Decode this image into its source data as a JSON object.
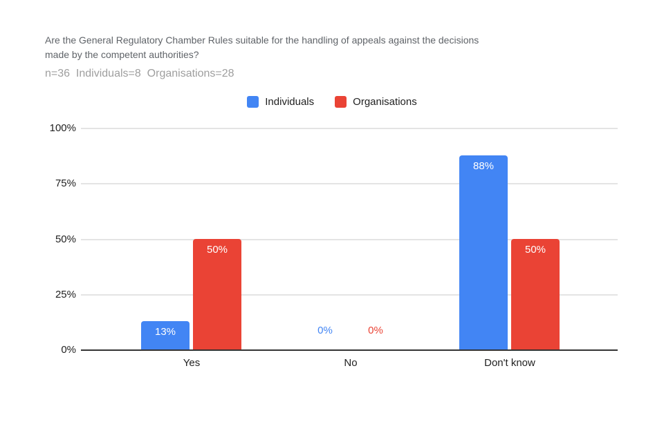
{
  "title": {
    "lines": [
      "Are the General Regulatory Chamber Rules suitable for the handling of appeals against the decisions",
      "made by the competent authorities?"
    ]
  },
  "subtitle": "n=36  Individuals=8  Organisations=28",
  "legend": {
    "items": [
      {
        "label": "Individuals",
        "color": "#4285F4"
      },
      {
        "label": "Organisations",
        "color": "#EA4335"
      }
    ]
  },
  "colors": {
    "individuals": "#4285F4",
    "organisations": "#EA4335",
    "gridline": "#e4e4e4",
    "axis": "#333333",
    "title_text": "#5f6368",
    "subtitle_text": "#9e9e9e"
  },
  "chart_data": {
    "type": "bar",
    "title": "Are the General Regulatory Chamber Rules suitable for the handling of appeals against the decisions made by the competent authorities?",
    "subtitle": "n=36  Individuals=8  Organisations=28",
    "categories": [
      "Yes",
      "No",
      "Don't know"
    ],
    "series": [
      {
        "name": "Individuals",
        "color": "#4285F4",
        "values": [
          13,
          0,
          88
        ],
        "labels": [
          "13%",
          "0%",
          "88%"
        ]
      },
      {
        "name": "Organisations",
        "color": "#EA4335",
        "values": [
          50,
          0,
          50
        ],
        "labels": [
          "50%",
          "0%",
          "50%"
        ]
      }
    ],
    "xlabel": "",
    "ylabel": "",
    "ylim": [
      0,
      100
    ],
    "y_ticks": [
      0,
      25,
      50,
      75,
      100
    ],
    "y_tick_labels": [
      "0%",
      "25%",
      "50%",
      "75%",
      "100%"
    ],
    "grid": true,
    "legend_position": "top",
    "data_label_position": "inside-top"
  }
}
